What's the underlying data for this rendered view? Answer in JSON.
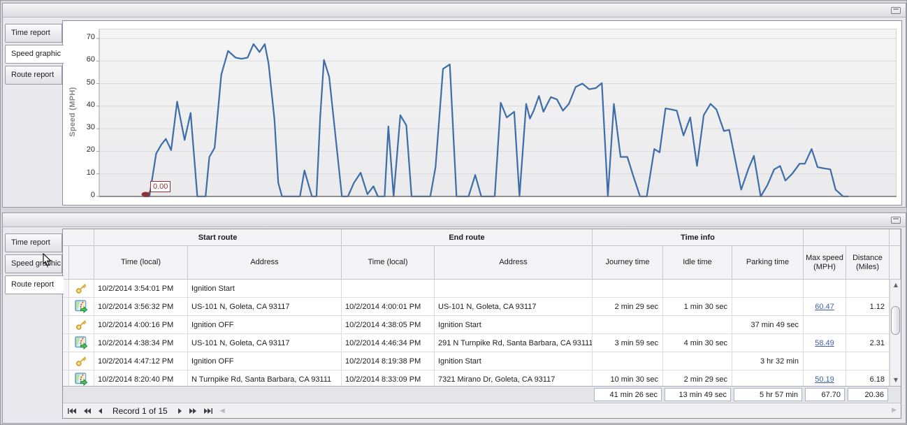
{
  "top_panel": {
    "tabs": [
      {
        "label": "Time report"
      },
      {
        "label": "Speed graphic"
      },
      {
        "label": "Route report"
      }
    ],
    "active_tab": "Speed graphic"
  },
  "chart_data": {
    "type": "line",
    "title": "",
    "xlabel": "",
    "ylabel": "Speed (MPH)",
    "yticks": [
      0,
      10,
      20,
      30,
      40,
      50,
      60,
      70
    ],
    "ylim": [
      0,
      74
    ],
    "grid": true,
    "legend": "none",
    "line_color": "#3c6da8",
    "series_name": "Speed",
    "x_unit": "percent_of_timeline",
    "points": [
      [
        6.0,
        0
      ],
      [
        6.7,
        0
      ],
      [
        7.6,
        19
      ],
      [
        8.3,
        23
      ],
      [
        8.9,
        25.5
      ],
      [
        9.6,
        20.5
      ],
      [
        10.4,
        42
      ],
      [
        11.4,
        25
      ],
      [
        12.2,
        37
      ],
      [
        13.1,
        0
      ],
      [
        14.2,
        0
      ],
      [
        14.7,
        17.5
      ],
      [
        15.4,
        21.5
      ],
      [
        16.3,
        54
      ],
      [
        17.2,
        64.5
      ],
      [
        18.2,
        61.5
      ],
      [
        19.0,
        61
      ],
      [
        19.8,
        61.5
      ],
      [
        20.6,
        67.5
      ],
      [
        21.4,
        64
      ],
      [
        22.1,
        67.5
      ],
      [
        22.6,
        59
      ],
      [
        23.4,
        34
      ],
      [
        23.9,
        6
      ],
      [
        24.4,
        0
      ],
      [
        26.8,
        0
      ],
      [
        27.4,
        11.5
      ],
      [
        28.4,
        0
      ],
      [
        29.0,
        0
      ],
      [
        29.5,
        35
      ],
      [
        30.0,
        60.5
      ],
      [
        30.7,
        53
      ],
      [
        32.4,
        0
      ],
      [
        33.2,
        0
      ],
      [
        34.0,
        6
      ],
      [
        34.9,
        10.5
      ],
      [
        35.8,
        1
      ],
      [
        36.6,
        4.5
      ],
      [
        37.2,
        0
      ],
      [
        38.1,
        0
      ],
      [
        38.6,
        31
      ],
      [
        39.3,
        0
      ],
      [
        40.2,
        36
      ],
      [
        41.0,
        31.5
      ],
      [
        41.7,
        0
      ],
      [
        44.2,
        0
      ],
      [
        44.9,
        13
      ],
      [
        45.9,
        56.5
      ],
      [
        46.8,
        58.5
      ],
      [
        47.7,
        0
      ],
      [
        49.3,
        0
      ],
      [
        50.2,
        9.5
      ],
      [
        51.0,
        0
      ],
      [
        52.8,
        0
      ],
      [
        53.6,
        41.5
      ],
      [
        54.4,
        35
      ],
      [
        55.4,
        37.5
      ],
      [
        56.1,
        0
      ],
      [
        57.0,
        41
      ],
      [
        57.5,
        34.5
      ],
      [
        58.0,
        38
      ],
      [
        58.7,
        44.5
      ],
      [
        59.3,
        37.5
      ],
      [
        59.9,
        41.5
      ],
      [
        60.3,
        44
      ],
      [
        61.1,
        43
      ],
      [
        61.9,
        38
      ],
      [
        62.7,
        41
      ],
      [
        63.6,
        48.5
      ],
      [
        64.5,
        50
      ],
      [
        65.4,
        47.5
      ],
      [
        66.3,
        48
      ],
      [
        67.1,
        50.2
      ],
      [
        67.9,
        0
      ],
      [
        68.7,
        41
      ],
      [
        69.6,
        17.5
      ],
      [
        70.5,
        17.5
      ],
      [
        71.3,
        9
      ],
      [
        72.2,
        0
      ],
      [
        73.1,
        0
      ],
      [
        74.1,
        21
      ],
      [
        74.8,
        19.5
      ],
      [
        75.6,
        39
      ],
      [
        76.4,
        38.5
      ],
      [
        77.1,
        38
      ],
      [
        78.0,
        27
      ],
      [
        78.9,
        35
      ],
      [
        79.8,
        13.5
      ],
      [
        80.7,
        36
      ],
      [
        81.6,
        41
      ],
      [
        82.4,
        38.5
      ],
      [
        83.4,
        29
      ],
      [
        84.1,
        29.5
      ],
      [
        85.7,
        3
      ],
      [
        86.7,
        12.5
      ],
      [
        87.4,
        18
      ],
      [
        88.3,
        0
      ],
      [
        89.2,
        5
      ],
      [
        90.1,
        12
      ],
      [
        90.9,
        13.5
      ],
      [
        91.6,
        7
      ],
      [
        92.5,
        10
      ],
      [
        93.5,
        14.5
      ],
      [
        94.2,
        14.5
      ],
      [
        95.1,
        21
      ],
      [
        95.9,
        13
      ],
      [
        96.6,
        12.5
      ],
      [
        97.6,
        12
      ],
      [
        98.3,
        3
      ],
      [
        99.3,
        0
      ],
      [
        100.0,
        0
      ]
    ],
    "annotation": {
      "x": 6.3,
      "y": 0,
      "label": "0.00",
      "color": "#8b3232"
    }
  },
  "bottom_panel": {
    "tabs": [
      {
        "label": "Time report"
      },
      {
        "label": "Speed graphic"
      },
      {
        "label": "Route report"
      }
    ],
    "active_tab": "Route report",
    "table": {
      "group_headers": [
        {
          "label": "",
          "cols": [
            0,
            1
          ]
        },
        {
          "label": "Start route",
          "cols": [
            2,
            3
          ]
        },
        {
          "label": "End route",
          "cols": [
            4,
            5
          ]
        },
        {
          "label": "Time info",
          "cols": [
            6,
            7,
            8
          ]
        },
        {
          "label": "",
          "cols": [
            9,
            10
          ]
        }
      ],
      "columns": [
        "",
        "",
        "Time (local)",
        "Address",
        "Time (local)",
        "Address",
        "Journey time",
        "Idle time",
        "Parking time",
        "Max speed (MPH)",
        "Distance (Miles)"
      ],
      "rows": [
        {
          "icon": "key-icon",
          "start_time": "10/2/2014 3:54:01 PM",
          "start_address": "Ignition Start",
          "end_time": "",
          "end_address": "",
          "journey_time": "",
          "idle_time": "",
          "parking_time": "",
          "max_speed": "",
          "max_speed_link": false,
          "distance": ""
        },
        {
          "icon": "route-icon",
          "start_time": "10/2/2014 3:56:32 PM",
          "start_address": "US-101 N, Goleta, CA 93117",
          "end_time": "10/2/2014 4:00:01 PM",
          "end_address": "US-101 N, Goleta, CA 93117",
          "journey_time": "2 min 29 sec",
          "idle_time": "1 min 30 sec",
          "parking_time": "",
          "max_speed": "60.47",
          "max_speed_link": true,
          "distance": "1.12"
        },
        {
          "icon": "key-icon",
          "start_time": "10/2/2014 4:00:16 PM",
          "start_address": "Ignition OFF",
          "end_time": "10/2/2014 4:38:05 PM",
          "end_address": "Ignition Start",
          "journey_time": "",
          "idle_time": "",
          "parking_time": "37 min 49 sec",
          "max_speed": "",
          "max_speed_link": false,
          "distance": ""
        },
        {
          "icon": "route-icon",
          "start_time": "10/2/2014 4:38:34 PM",
          "start_address": "US-101 N, Goleta, CA 93117",
          "end_time": "10/2/2014 4:46:34 PM",
          "end_address": "291 N Turnpike Rd, Santa Barbara, CA 93111",
          "journey_time": "3 min 59 sec",
          "idle_time": "4 min 30 sec",
          "parking_time": "",
          "max_speed": "58.49",
          "max_speed_link": true,
          "distance": "2.31"
        },
        {
          "icon": "key-icon",
          "start_time": "10/2/2014 4:47:12 PM",
          "start_address": "Ignition OFF",
          "end_time": "10/2/2014 8:19:38 PM",
          "end_address": "Ignition Start",
          "journey_time": "",
          "idle_time": "",
          "parking_time": "3 hr 32 min",
          "max_speed": "",
          "max_speed_link": false,
          "distance": ""
        },
        {
          "icon": "route-icon",
          "start_time": "10/2/2014 8:20:40 PM",
          "start_address": "N Turnpike Rd, Santa Barbara, CA 93111",
          "end_time": "10/2/2014 8:33:09 PM",
          "end_address": "7321 Mirano Dr, Goleta, CA 93117",
          "journey_time": "10 min 30 sec",
          "idle_time": "2 min 29 sec",
          "parking_time": "",
          "max_speed": "50.19",
          "max_speed_link": true,
          "distance": "6.18"
        }
      ],
      "summary": {
        "journey_time": "41 min 26 sec",
        "idle_time": "13 min 49 sec",
        "parking_time": "5 hr 57 min",
        "max_speed": "67.70",
        "distance": "20.36"
      },
      "pager": {
        "record_text": "Record 1 of 15",
        "buttons": [
          "first-record",
          "prev-page",
          "prev-record",
          "next-record",
          "next-page",
          "last-record"
        ]
      }
    }
  }
}
